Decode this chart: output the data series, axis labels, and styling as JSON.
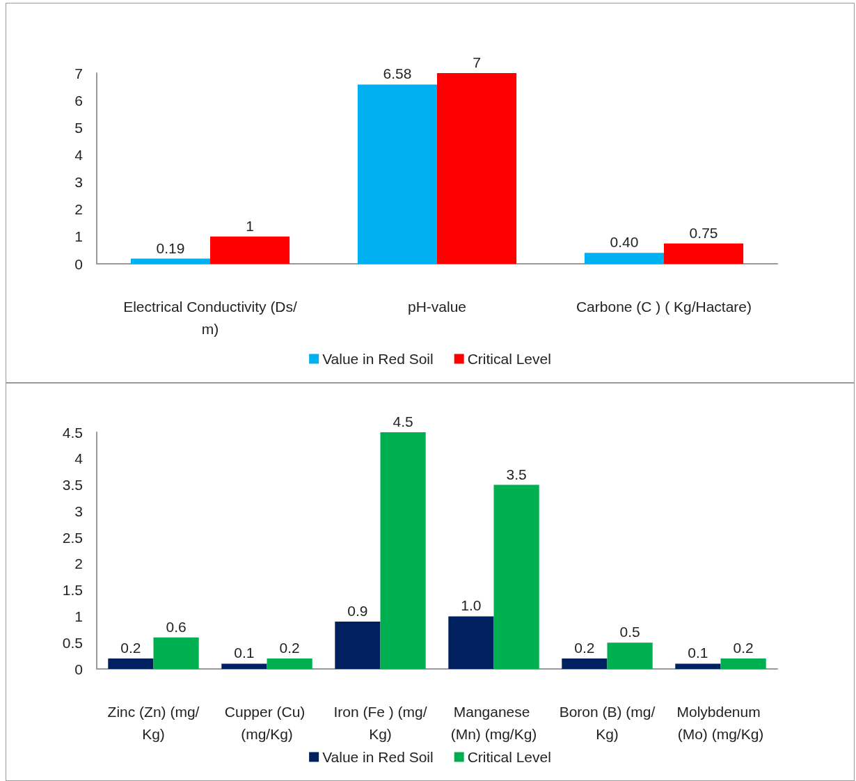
{
  "chart_data": [
    {
      "type": "bar",
      "categories": [
        "Electrical Conductivity (Ds/m)",
        "pH-value",
        "Carbone (C ) ( Kg/Hactare)"
      ],
      "series": [
        {
          "name": "Value in Red Soil",
          "color": "#00b0f0",
          "values": [
            0.19,
            6.58,
            0.4
          ],
          "value_labels": [
            "0.19",
            "6.58",
            "0.40"
          ]
        },
        {
          "name": "Critical Level",
          "color": "#ff0000",
          "values": [
            1,
            7,
            0.75
          ],
          "value_labels": [
            "1",
            "7",
            "0.75"
          ]
        }
      ],
      "ylim": [
        0,
        7
      ],
      "yticks": [
        0,
        1,
        2,
        3,
        4,
        5,
        6,
        7
      ],
      "legend": "bottom"
    },
    {
      "type": "bar",
      "categories": [
        "Zinc (Zn) (mg/Kg)",
        "Cupper (Cu) (mg/Kg)",
        "Iron (Fe ) (mg/Kg)",
        "Manganese (Mn) (mg/Kg)",
        "Boron (B) (mg/Kg)",
        "Molybdenum (Mo) (mg/Kg)"
      ],
      "series": [
        {
          "name": "Value in Red Soil",
          "color": "#002060",
          "values": [
            0.2,
            0.1,
            0.9,
            1.0,
            0.2,
            0.1
          ],
          "value_labels": [
            "0.2",
            "0.1",
            "0.9",
            "1.0",
            "0.2",
            "0.1"
          ]
        },
        {
          "name": "Critical Level",
          "color": "#00b050",
          "values": [
            0.6,
            0.2,
            4.5,
            3.5,
            0.5,
            0.2
          ],
          "value_labels": [
            "0.6",
            "0.2",
            "4.5",
            "3.5",
            "0.5",
            "0.2"
          ]
        }
      ],
      "ylim": [
        0,
        4.5
      ],
      "yticks": [
        0,
        0.5,
        1,
        1.5,
        2,
        2.5,
        3,
        3.5,
        4,
        4.5
      ],
      "legend": "bottom"
    }
  ]
}
